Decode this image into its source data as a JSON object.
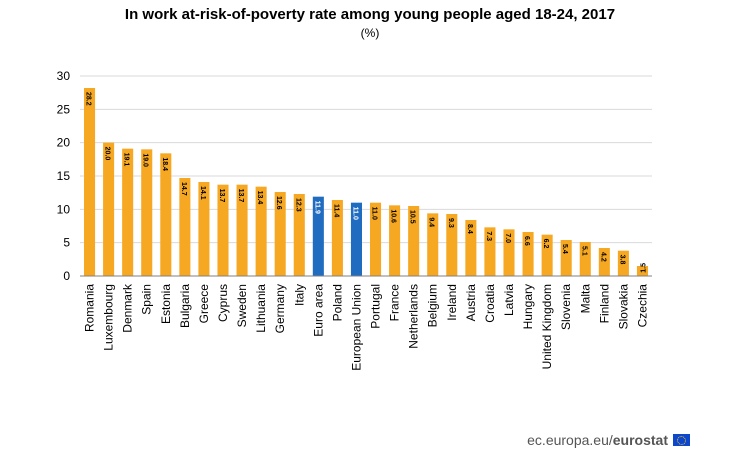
{
  "chart_data": {
    "type": "bar",
    "title": "In work at-risk-of-poverty rate among young people aged 18-24, 2017",
    "subtitle": "(%)",
    "xlabel": "",
    "ylabel": "",
    "ylim": [
      0,
      30
    ],
    "yticks": [
      "0",
      "5",
      "10",
      "15",
      "20",
      "25",
      "30"
    ],
    "grid": true,
    "categories": [
      "Romania",
      "Luxembourg",
      "Denmark",
      "Spain",
      "Estonia",
      "Bulgaria",
      "Greece",
      "Cyprus",
      "Sweden",
      "Lithuania",
      "Germany",
      "Italy",
      "Euro area",
      "Poland",
      "European Union",
      "Portugal",
      "France",
      "Netherlands",
      "Belgium",
      "Ireland",
      "Austria",
      "Croatia",
      "Latvia",
      "Hungary",
      "United Kingdom",
      "Slovenia",
      "Malta",
      "Finland",
      "Slovakia",
      "Czechia"
    ],
    "values": [
      28.2,
      20.0,
      19.1,
      19.0,
      18.4,
      14.7,
      14.1,
      13.7,
      13.7,
      13.4,
      12.6,
      12.3,
      11.9,
      11.4,
      11.0,
      11.0,
      10.6,
      10.5,
      9.4,
      9.3,
      8.4,
      7.3,
      7.0,
      6.6,
      6.2,
      5.4,
      5.1,
      4.2,
      3.8,
      1.5
    ],
    "value_labels": [
      "28.2",
      "20.0",
      "19.1",
      "19.0",
      "18.4",
      "14.7",
      "14.1",
      "13.7",
      "13.7",
      "13.4",
      "12.6",
      "12.3",
      "11.9",
      "11.4",
      "11.0",
      "11.0",
      "10.6",
      "10.5",
      "9.4",
      "9.3",
      "8.4",
      "7.3",
      "7.0",
      "6.6",
      "6.2",
      "5.4",
      "5.1",
      "4.2",
      "3.8",
      "1.5"
    ],
    "highlighted": [
      "Euro area",
      "European Union"
    ],
    "colors": {
      "bar": "#f7a823",
      "highlight": "#1f6cc0",
      "grid": "#d9d9d9",
      "axis": "#808080",
      "text": "#000000",
      "label_on_highlight": "#ffffff"
    }
  },
  "footer": {
    "source_prefix": "ec.europa.eu/",
    "source_brand": "eurostat",
    "flag_icon": "eu-flag-icon"
  }
}
